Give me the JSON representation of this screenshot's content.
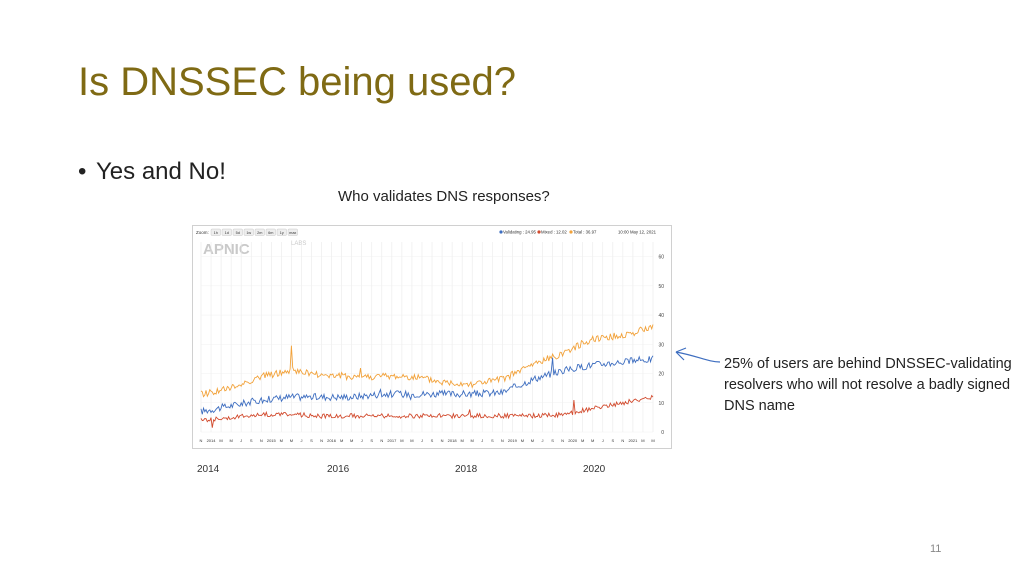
{
  "slide": {
    "title": "Is DNSSEC being used?",
    "bullet": "Yes and No!",
    "caption": "Who validates DNS responses?",
    "annotation": "25% of users are behind DNSSEC-validating resolvers who will not resolve a badly signed DNS name",
    "page_number": "11",
    "year_labels": [
      "2014",
      "2016",
      "2018",
      "2020"
    ]
  },
  "chart_header": {
    "zoom_label": "Zoom:",
    "zoom_buttons": [
      "1h",
      "1d",
      "5d",
      "1w",
      "2m",
      "6m",
      "1y",
      "max"
    ],
    "legend_text": {
      "validating": "Validating : 24.95",
      "mixed": "Mixed : 12.02",
      "total": "Total : 36.97",
      "date": "10:00 May 12, 2021"
    },
    "logo_text": "APNIC",
    "logo_sub": "LABS"
  },
  "chart_data": {
    "type": "line",
    "x": [
      "2013-11",
      "2014-05",
      "2014-11",
      "2015-05",
      "2015-11",
      "2016-05",
      "2016-11",
      "2017-05",
      "2017-11",
      "2018-05",
      "2018-11",
      "2019-05",
      "2019-11",
      "2020-05",
      "2020-11",
      "2021-05"
    ],
    "series": [
      {
        "name": "Validating",
        "color": "#3e6ec0",
        "values": [
          7,
          9,
          11,
          12,
          12,
          12,
          13,
          13,
          13,
          13,
          13.5,
          18,
          21,
          23,
          24,
          25
        ]
      },
      {
        "name": "Mixed",
        "color": "#d24b2e",
        "values": [
          4,
          5,
          6,
          6,
          5.5,
          5.5,
          5.5,
          5.5,
          5.5,
          5.5,
          5.5,
          5.5,
          6,
          8,
          10,
          12
        ]
      },
      {
        "name": "Total",
        "color": "#f2a23a",
        "values": [
          13,
          15,
          19,
          21,
          19.5,
          19,
          19,
          19,
          17,
          16.5,
          18,
          23,
          27,
          32,
          33,
          36
        ]
      }
    ],
    "y_ticks": [
      0,
      10,
      20,
      30,
      40,
      50,
      60
    ],
    "x_tick_labels": [
      "N",
      "2014",
      "M",
      "M",
      "J",
      "S",
      "N",
      "2015",
      "M",
      "M",
      "J",
      "S",
      "N",
      "2016",
      "M",
      "M",
      "J",
      "S",
      "N",
      "2017",
      "M",
      "M",
      "J",
      "S",
      "N",
      "2018",
      "M",
      "M",
      "J",
      "S",
      "N",
      "2019",
      "M",
      "M",
      "J",
      "S",
      "N",
      "2020",
      "M",
      "M",
      "J",
      "S",
      "N",
      "2021",
      "M",
      "M"
    ],
    "ylim": [
      0,
      65
    ]
  }
}
